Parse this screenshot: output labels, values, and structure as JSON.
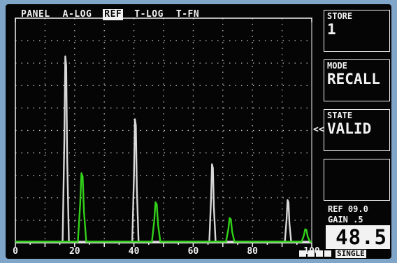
{
  "tabs": [
    {
      "label": "PANEL",
      "active": false
    },
    {
      "label": "A-LOG",
      "active": false
    },
    {
      "label": "REF",
      "active": true
    },
    {
      "label": "T-LOG",
      "active": false
    },
    {
      "label": "T-FN",
      "active": false
    }
  ],
  "panels": {
    "store": {
      "label": "STORE",
      "value": "1"
    },
    "mode": {
      "label": "MODE",
      "value": "RECALL"
    },
    "state": {
      "label": "STATE",
      "value": "VALID"
    },
    "blank": {
      "label": "",
      "value": ""
    }
  },
  "marker": "<<",
  "ref": "REF 09.0",
  "gain_label": "GAIN  .5",
  "gain_value": "48.5",
  "acq_mode": "SINGLE",
  "colors": {
    "reference": "#d8d8d8",
    "live": "#33d11a",
    "grid": "#f2f2f2"
  },
  "chart_data": {
    "type": "line",
    "xlim": [
      0,
      100
    ],
    "ylim": [
      0,
      100
    ],
    "x_ticks": [
      0,
      20,
      40,
      60,
      80,
      100
    ],
    "grid": true,
    "series": [
      {
        "color": "#d8d8d8",
        "peaks": [
          {
            "x": 17,
            "height": 83
          },
          {
            "x": 40.5,
            "height": 55
          },
          {
            "x": 66.5,
            "height": 35
          },
          {
            "x": 92,
            "height": 19
          }
        ]
      },
      {
        "color": "#33d11a",
        "peaks": [
          {
            "x": 22.5,
            "height": 31
          },
          {
            "x": 47.5,
            "height": 18
          },
          {
            "x": 72.5,
            "height": 11
          },
          {
            "x": 98,
            "height": 6
          }
        ]
      }
    ]
  }
}
